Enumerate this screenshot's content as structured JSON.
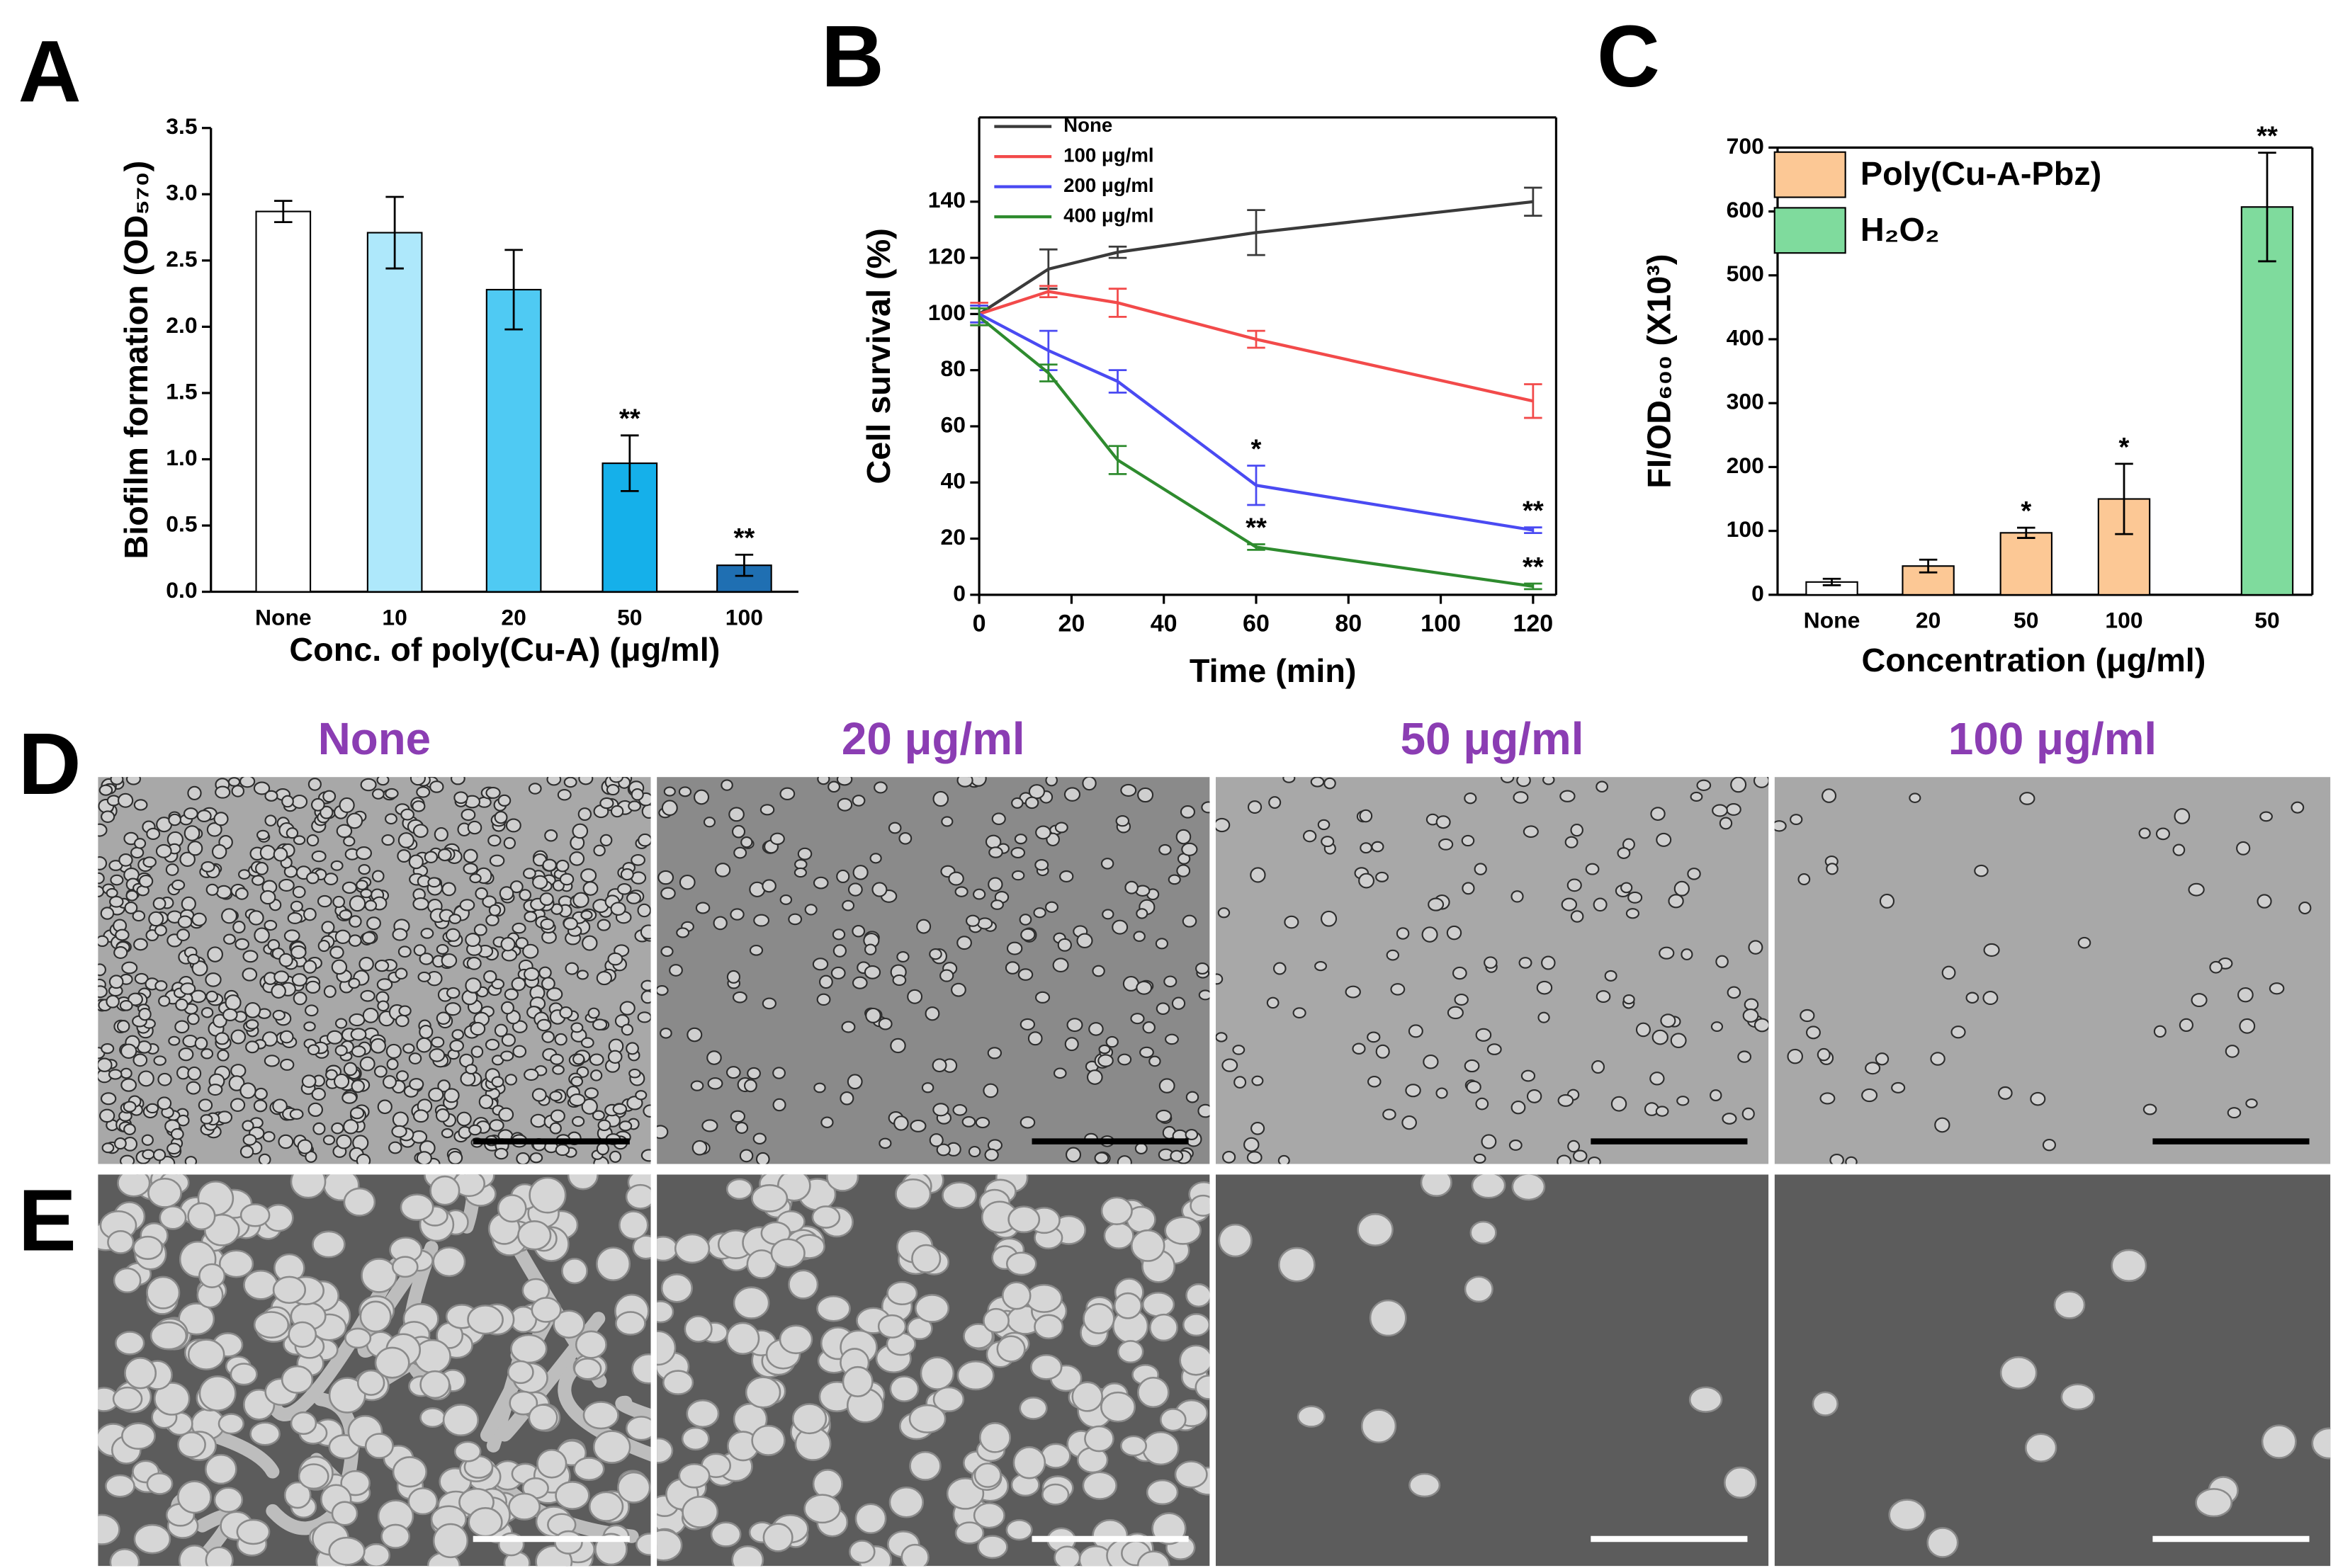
{
  "chart_data": [
    {
      "type": "bar",
      "panel_label": "A",
      "ylabel": "Biofilm formation (OD₅₇₀)",
      "xlabel": "Conc. of poly(Cu-A) (μg/ml)",
      "categories": [
        "None",
        "10",
        "20",
        "50",
        "100"
      ],
      "values": [
        2.87,
        2.71,
        2.28,
        0.97,
        0.2
      ],
      "errors": [
        0.08,
        0.27,
        0.3,
        0.21,
        0.08
      ],
      "colors": [
        "#ffffff",
        "#aee8fb",
        "#4fcaf3",
        "#15b0ea",
        "#1f6fb2"
      ],
      "annotations": [
        null,
        null,
        null,
        "**",
        "**"
      ],
      "ylim": [
        0,
        3.5
      ],
      "yticks": [
        {
          "value": 0,
          "label": "0.0"
        },
        0.5,
        {
          "value": 1,
          "label": "1.0"
        },
        1.5,
        {
          "value": 2,
          "label": "2.0"
        },
        2.5,
        {
          "value": 3,
          "label": "3.0"
        },
        3.5
      ]
    },
    {
      "type": "line",
      "panel_label": "B",
      "ylabel": "Cell survival (%)",
      "xlabel": "Time (min)",
      "x": [
        0,
        15,
        30,
        60,
        120
      ],
      "series": [
        {
          "name": "None",
          "color": "#3a3a3a",
          "values": [
            100,
            116,
            122,
            129,
            140
          ],
          "errors": [
            3,
            7,
            2,
            8,
            5
          ],
          "annotations": [
            null,
            null,
            null,
            null,
            null
          ]
        },
        {
          "name": "100 μg/ml",
          "color": "#f24a4a",
          "values": [
            100,
            108,
            104,
            91,
            69
          ],
          "errors": [
            4,
            2,
            5,
            3,
            6
          ],
          "annotations": [
            null,
            null,
            null,
            null,
            null
          ]
        },
        {
          "name": "200 μg/ml",
          "color": "#4a4af2",
          "values": [
            100,
            87,
            76,
            39,
            23
          ],
          "errors": [
            3,
            7,
            4,
            7,
            1
          ],
          "annotations": [
            null,
            null,
            null,
            "*",
            "**"
          ]
        },
        {
          "name": "400 μg/ml",
          "color": "#2e8b2e",
          "values": [
            99,
            79,
            48,
            17,
            3
          ],
          "errors": [
            3,
            3,
            5,
            1,
            1
          ],
          "annotations": [
            null,
            null,
            null,
            "**",
            "**"
          ]
        }
      ],
      "legend": "upper left",
      "xlim": [
        0,
        125
      ],
      "xticks": [
        0,
        20,
        40,
        60,
        80,
        100,
        120
      ],
      "ylim": [
        0,
        170
      ],
      "yticks": [
        0,
        20,
        40,
        60,
        80,
        100,
        120,
        140
      ]
    },
    {
      "type": "bar",
      "panel_label": "C",
      "ylabel": "FI/OD₆₀₀ (X10³)",
      "xlabel": "Concentration (μg/ml)",
      "categories": [
        "None",
        "20",
        "50",
        "100",
        "50"
      ],
      "values": [
        20,
        45,
        97,
        150,
        607
      ],
      "errors": [
        5,
        10,
        8,
        55,
        85
      ],
      "colors": [
        "#ffffff",
        "#fcc895",
        "#fcc895",
        "#fcc895",
        "#7fdb9d"
      ],
      "annotations": [
        null,
        null,
        "*",
        "*",
        "**"
      ],
      "legend": [
        {
          "name": "Poly(Cu-A-Pbz)",
          "color": "#fcc895"
        },
        {
          "name": "H₂O₂",
          "color": "#7fdb9d"
        }
      ],
      "ylim": [
        0,
        700
      ],
      "yticks": [
        0,
        100,
        200,
        300,
        400,
        500,
        600,
        700
      ]
    }
  ],
  "micrographs": {
    "panel_labels": [
      "D",
      "E"
    ],
    "titles": [
      "None",
      "20 μg/ml",
      "50 μg/ml",
      "100 μg/ml"
    ]
  }
}
